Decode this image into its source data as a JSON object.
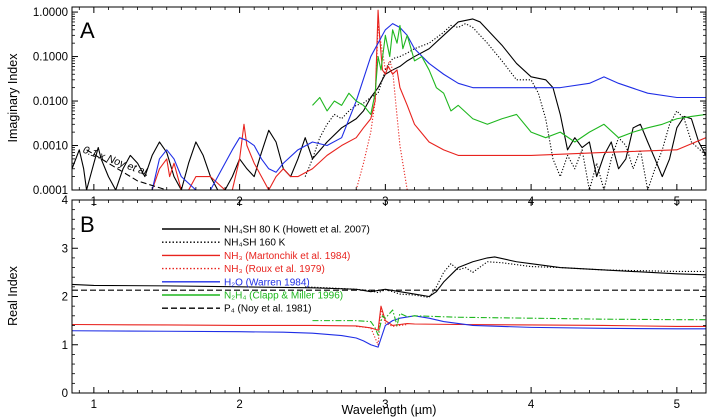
{
  "chart_data": [
    {
      "panel_label": "A",
      "type": "line",
      "ylabel": "Imaginary Index",
      "xlabel": "",
      "xlim": [
        0.85,
        5.2
      ],
      "ylim": [
        0.0001,
        1.3
      ],
      "yscale": "log",
      "grid": false,
      "x_ticks": [
        1,
        2,
        3,
        4,
        5
      ],
      "x_tick_labels": [
        "1",
        "2",
        "3",
        "4",
        "5"
      ],
      "y_ticks": [
        0.0001,
        0.001,
        0.01,
        0.1,
        1
      ],
      "y_tick_labels": [
        "0.0001",
        "0.0010",
        "0.0100",
        "0.1000",
        "1.0000"
      ],
      "annotation": {
        "text": "0.1 x Noy et al.",
        "x": 0.92,
        "y": 0.0007
      },
      "series": [
        {
          "key": "nh4sh80",
          "color": "#000000",
          "dash": "solid",
          "x": [
            0.85,
            0.9,
            0.93,
            0.95,
            1.0,
            1.03,
            1.05,
            1.1,
            1.15,
            1.2,
            1.25,
            1.3,
            1.35,
            1.4,
            1.45,
            1.5,
            1.55,
            1.6,
            1.65,
            1.7,
            1.75,
            1.8,
            1.85,
            1.9,
            1.95,
            2.0,
            2.05,
            2.1,
            2.15,
            2.2,
            2.25,
            2.3,
            2.35,
            2.4,
            2.45,
            2.5,
            2.6,
            2.7,
            2.8,
            2.85,
            2.9,
            2.95,
            3.0,
            3.05,
            3.1,
            3.15,
            3.2,
            3.3,
            3.4,
            3.5,
            3.6,
            3.65,
            3.7,
            3.8,
            3.9,
            4.0,
            4.1,
            4.15,
            4.2,
            4.25,
            4.3,
            4.35,
            4.4,
            4.45,
            4.5,
            4.55,
            4.6,
            4.65,
            4.7,
            4.75,
            4.8,
            4.85,
            4.9,
            4.95,
            5.0,
            5.05,
            5.1,
            5.15,
            5.2
          ],
          "y": [
            0.0003,
            0.0008,
            0.0003,
            0.0001,
            0.0004,
            0.0009,
            0.0005,
            0.0002,
            0.0001,
            0.0003,
            0.0006,
            0.0004,
            0.0002,
            0.0006,
            0.0012,
            0.0007,
            0.0002,
            0.0001,
            0.0004,
            0.0012,
            0.0006,
            0.0002,
            0.0001,
            0.0001,
            0.0002,
            0.0005,
            0.0003,
            0.0002,
            0.0007,
            0.0022,
            0.0012,
            0.0003,
            0.0002,
            0.0005,
            0.0015,
            0.0005,
            0.0012,
            0.0025,
            0.004,
            0.006,
            0.012,
            0.02,
            0.04,
            0.05,
            0.06,
            0.08,
            0.1,
            0.15,
            0.3,
            0.6,
            0.7,
            0.6,
            0.4,
            0.18,
            0.07,
            0.035,
            0.03,
            0.02,
            0.005,
            0.0008,
            0.0015,
            0.0009,
            0.0012,
            0.0002,
            0.0006,
            0.0012,
            0.0003,
            0.0005,
            0.0025,
            0.003,
            0.0012,
            0.0005,
            0.0002,
            0.0005,
            0.0025,
            0.0045,
            0.004,
            0.0012,
            0.0006
          ]
        },
        {
          "key": "nh4sh160",
          "color": "#000000",
          "dash": "dotted",
          "x": [
            2.45,
            2.5,
            2.55,
            2.6,
            2.65,
            2.7,
            2.75,
            2.8,
            2.85,
            2.9,
            2.95,
            3.0,
            3.05,
            3.1,
            3.15,
            3.2,
            3.3,
            3.4,
            3.45,
            3.5,
            3.55,
            3.6,
            3.65,
            3.7,
            3.8,
            3.9,
            4.0,
            4.05,
            4.1,
            4.15,
            4.2,
            4.25,
            4.3,
            4.35,
            4.4,
            4.45,
            4.5,
            4.55,
            4.6,
            4.65,
            4.7,
            4.75,
            4.8,
            4.85,
            4.9,
            4.95,
            5.0,
            5.05,
            5.1,
            5.2
          ],
          "y": [
            0.0002,
            0.0005,
            0.0015,
            0.003,
            0.005,
            0.004,
            0.006,
            0.008,
            0.009,
            0.012,
            0.015,
            0.05,
            0.09,
            0.1,
            0.12,
            0.15,
            0.2,
            0.35,
            0.5,
            0.45,
            0.55,
            0.45,
            0.3,
            0.2,
            0.08,
            0.03,
            0.03,
            0.015,
            0.004,
            0.0005,
            0.0002,
            0.0006,
            0.0003,
            0.0008,
            0.0001,
            0.0004,
            0.0001,
            0.0005,
            0.0015,
            0.001,
            0.0003,
            0.0008,
            0.0001,
            0.0003,
            0.0008,
            0.003,
            0.006,
            0.004,
            0.0012,
            0.0006
          ]
        },
        {
          "key": "nh3_martonchik",
          "color": "#e8231e",
          "dash": "solid",
          "x": [
            1.4,
            1.45,
            1.5,
            1.52,
            1.55,
            1.6,
            1.65,
            1.7,
            1.8,
            1.9,
            1.95,
            2.0,
            2.03,
            2.05,
            2.1,
            2.15,
            2.2,
            2.25,
            2.3,
            2.35,
            2.4,
            2.5,
            2.6,
            2.7,
            2.8,
            2.85,
            2.9,
            2.93,
            2.95,
            2.96,
            2.98,
            3.0,
            3.02,
            3.05,
            3.08,
            3.1,
            3.15,
            3.2,
            3.3,
            3.4,
            3.5,
            4.0,
            4.5,
            5.0,
            5.2
          ],
          "y": [
            0.0001,
            0.0003,
            0.0005,
            0.0002,
            0.0004,
            0.0001,
            0.0001,
            0.0002,
            0.0002,
            0.0001,
            0.0001,
            0.0005,
            0.003,
            0.001,
            0.0004,
            0.0002,
            0.0001,
            0.0002,
            0.0003,
            0.0002,
            0.0002,
            0.0003,
            0.0006,
            0.001,
            0.0015,
            0.0025,
            0.004,
            0.01,
            1.1,
            0.3,
            0.05,
            0.04,
            0.06,
            0.04,
            0.05,
            0.02,
            0.008,
            0.003,
            0.0012,
            0.0008,
            0.0006,
            0.0006,
            0.0007,
            0.0008,
            0.0015
          ]
        },
        {
          "key": "nh3_roux",
          "color": "#e8231e",
          "dash": "dotted",
          "x": [
            2.8,
            2.85,
            2.9,
            2.93,
            2.95,
            2.97,
            3.0,
            3.03,
            3.05,
            3.07,
            3.1,
            3.15
          ],
          "y": [
            0.0001,
            0.0004,
            0.002,
            0.01,
            0.5,
            0.2,
            0.05,
            0.08,
            0.05,
            0.01,
            0.001,
            0.0001
          ]
        },
        {
          "key": "h2o_warren",
          "color": "#1f2ee6",
          "dash": "solid",
          "x": [
            1.3,
            1.4,
            1.45,
            1.5,
            1.55,
            1.6,
            1.7,
            1.8,
            1.9,
            1.95,
            2.0,
            2.05,
            2.1,
            2.15,
            2.2,
            2.25,
            2.3,
            2.4,
            2.5,
            2.6,
            2.7,
            2.8,
            2.9,
            3.0,
            3.05,
            3.1,
            3.15,
            3.2,
            3.3,
            3.4,
            3.5,
            3.6,
            3.7,
            3.8,
            3.9,
            4.0,
            4.2,
            4.4,
            4.5,
            4.6,
            4.8,
            5.0,
            5.2
          ],
          "y": [
            0.0001,
            0.0001,
            0.0005,
            0.0008,
            0.0005,
            0.0002,
            0.0001,
            0.0001,
            0.0004,
            0.0008,
            0.0015,
            0.0013,
            0.001,
            0.0005,
            0.0003,
            0.00025,
            0.0004,
            0.0008,
            0.0012,
            0.001,
            0.0015,
            0.01,
            0.1,
            0.4,
            0.55,
            0.45,
            0.3,
            0.15,
            0.07,
            0.04,
            0.025,
            0.02,
            0.02,
            0.02,
            0.02,
            0.02,
            0.02,
            0.025,
            0.035,
            0.025,
            0.015,
            0.012,
            0.012
          ]
        },
        {
          "key": "n2h4_clapp",
          "color": "#1fb71f",
          "dash": "solid",
          "x": [
            2.5,
            2.55,
            2.6,
            2.65,
            2.7,
            2.75,
            2.8,
            2.85,
            2.9,
            2.93,
            2.95,
            2.97,
            3.0,
            3.03,
            3.05,
            3.08,
            3.1,
            3.12,
            3.15,
            3.2,
            3.25,
            3.3,
            3.35,
            3.4,
            3.45,
            3.5,
            3.6,
            3.7,
            3.8,
            3.9,
            4.0,
            4.1,
            4.2,
            4.3,
            4.4,
            4.5,
            4.6,
            4.7,
            4.8,
            4.9,
            5.0,
            5.1,
            5.2
          ],
          "y": [
            0.008,
            0.012,
            0.006,
            0.01,
            0.008,
            0.015,
            0.01,
            0.008,
            0.005,
            0.015,
            0.1,
            0.05,
            0.3,
            0.1,
            0.4,
            0.2,
            0.5,
            0.15,
            0.3,
            0.08,
            0.1,
            0.05,
            0.02,
            0.015,
            0.006,
            0.008,
            0.004,
            0.003,
            0.004,
            0.005,
            0.002,
            0.0015,
            0.002,
            0.0012,
            0.002,
            0.003,
            0.0015,
            0.002,
            0.0025,
            0.003,
            0.004,
            0.0045,
            0.005
          ]
        },
        {
          "key": "noy",
          "color": "#000000",
          "dash": "dashed",
          "x": [
            0.95,
            1.1,
            1.3,
            1.5
          ],
          "y": [
            0.0008,
            0.0004,
            0.00016,
            0.0001
          ]
        }
      ]
    },
    {
      "panel_label": "B",
      "type": "line",
      "ylabel": "Real Index",
      "xlabel": "Wavelength (µm)",
      "xlim": [
        0.85,
        5.2
      ],
      "ylim": [
        0,
        4
      ],
      "grid": false,
      "x_ticks": [
        1,
        2,
        3,
        4,
        5
      ],
      "x_tick_labels": [
        "1",
        "2",
        "3",
        "4",
        "5"
      ],
      "y_ticks": [
        0,
        1,
        2,
        3,
        4
      ],
      "y_tick_labels": [
        "0",
        "1",
        "2",
        "3",
        "4"
      ],
      "legend": {
        "placement": "upper-left",
        "entries": [
          {
            "key": "nh4sh80",
            "label": "NH₄SH 80 K (Howett et al. 2007)",
            "color": "#000000",
            "text_color": "#000000",
            "dash": "solid"
          },
          {
            "key": "nh4sh160",
            "label": "NH₄SH 160 K",
            "color": "#000000",
            "text_color": "#000000",
            "dash": "dotted"
          },
          {
            "key": "nh3_martonchik",
            "label": "NH₃ (Martonchik et al. 1984)",
            "color": "#e8231e",
            "text_color": "#e8231e",
            "dash": "solid"
          },
          {
            "key": "nh3_roux",
            "label": "NH₃ (Roux et al. 1979)",
            "color": "#e8231e",
            "text_color": "#e8231e",
            "dash": "dotted"
          },
          {
            "key": "h2o_warren",
            "label": "H₂O (Warren 1984)",
            "color": "#1f2ee6",
            "text_color": "#1f2ee6",
            "dash": "solid"
          },
          {
            "key": "n2h4_clapp",
            "label": "N₂H₄ (Clapp & Miller 1996)",
            "color": "#1fb71f",
            "text_color": "#1fb71f",
            "dash": "solid"
          },
          {
            "key": "noy",
            "label": "P₄ (Noy et al. 1981)",
            "color": "#000000",
            "text_color": "#000000",
            "dash": "dashed"
          }
        ]
      },
      "series": [
        {
          "key": "nh4sh80",
          "color": "#000000",
          "dash": "solid",
          "x": [
            0.85,
            1.0,
            1.5,
            2.0,
            2.5,
            2.8,
            2.9,
            3.0,
            3.1,
            3.2,
            3.3,
            3.35,
            3.4,
            3.5,
            3.6,
            3.7,
            3.75,
            3.9,
            4.0,
            4.2,
            4.5,
            5.0,
            5.2
          ],
          "y": [
            2.25,
            2.23,
            2.22,
            2.2,
            2.18,
            2.15,
            2.1,
            2.15,
            2.1,
            2.05,
            2.0,
            2.1,
            2.3,
            2.6,
            2.72,
            2.8,
            2.82,
            2.72,
            2.68,
            2.6,
            2.55,
            2.47,
            2.45
          ]
        },
        {
          "key": "nh4sh160",
          "color": "#000000",
          "dash": "dotted",
          "x": [
            2.45,
            2.6,
            2.8,
            2.9,
            2.95,
            3.0,
            3.05,
            3.1,
            3.2,
            3.3,
            3.35,
            3.4,
            3.45,
            3.5,
            3.55,
            3.6,
            3.7,
            3.8,
            4.0,
            4.2,
            4.5,
            5.0,
            5.2
          ],
          "y": [
            2.2,
            2.18,
            2.15,
            2.12,
            2.08,
            2.14,
            2.1,
            2.05,
            2.03,
            1.98,
            2.2,
            2.5,
            2.68,
            2.55,
            2.6,
            2.5,
            2.72,
            2.7,
            2.62,
            2.6,
            2.55,
            2.52,
            2.52
          ]
        },
        {
          "key": "nh3_martonchik",
          "color": "#e8231e",
          "dash": "solid",
          "x": [
            0.85,
            1.5,
            2.0,
            2.5,
            2.8,
            2.9,
            2.95,
            2.97,
            3.0,
            3.05,
            3.1,
            3.15,
            3.2,
            3.5,
            4.0,
            4.5,
            5.0,
            5.2
          ],
          "y": [
            1.42,
            1.41,
            1.4,
            1.4,
            1.39,
            1.35,
            1.3,
            1.8,
            1.5,
            1.4,
            1.42,
            1.44,
            1.43,
            1.42,
            1.41,
            1.4,
            1.38,
            1.38
          ]
        },
        {
          "key": "nh3_roux",
          "color": "#e8231e",
          "dash": "dotted",
          "x": [
            2.8,
            2.9,
            2.95,
            2.97,
            3.0,
            3.05,
            3.1,
            3.15
          ],
          "y": [
            1.38,
            1.35,
            1.0,
            1.75,
            1.45,
            1.38,
            1.4,
            1.42
          ]
        },
        {
          "key": "h2o_warren",
          "color": "#1f2ee6",
          "dash": "solid",
          "x": [
            0.85,
            1.5,
            2.0,
            2.3,
            2.5,
            2.7,
            2.8,
            2.85,
            2.9,
            2.95,
            3.0,
            3.05,
            3.1,
            3.2,
            3.3,
            3.4,
            3.6,
            4.0,
            4.5,
            5.0,
            5.2
          ],
          "y": [
            1.29,
            1.28,
            1.27,
            1.26,
            1.24,
            1.19,
            1.14,
            1.08,
            1.0,
            0.95,
            1.4,
            1.5,
            1.55,
            1.6,
            1.55,
            1.48,
            1.4,
            1.36,
            1.34,
            1.33,
            1.33
          ]
        },
        {
          "key": "n2h4_clapp",
          "color": "#1fb71f",
          "dash": "dashdot",
          "x": [
            2.5,
            2.8,
            2.9,
            2.93,
            2.95,
            2.98,
            3.0,
            3.05,
            3.08,
            3.1,
            3.15,
            3.2,
            3.5,
            4.0,
            4.5,
            5.0,
            5.2
          ],
          "y": [
            1.5,
            1.5,
            1.48,
            1.35,
            1.2,
            1.6,
            1.55,
            1.72,
            1.4,
            1.65,
            1.58,
            1.6,
            1.57,
            1.55,
            1.53,
            1.52,
            1.52
          ]
        },
        {
          "key": "noy",
          "color": "#000000",
          "dash": "dashed",
          "x": [
            0.85,
            2.0,
            3.0,
            4.0,
            5.2
          ],
          "y": [
            2.13,
            2.13,
            2.13,
            2.13,
            2.13
          ]
        }
      ]
    }
  ]
}
